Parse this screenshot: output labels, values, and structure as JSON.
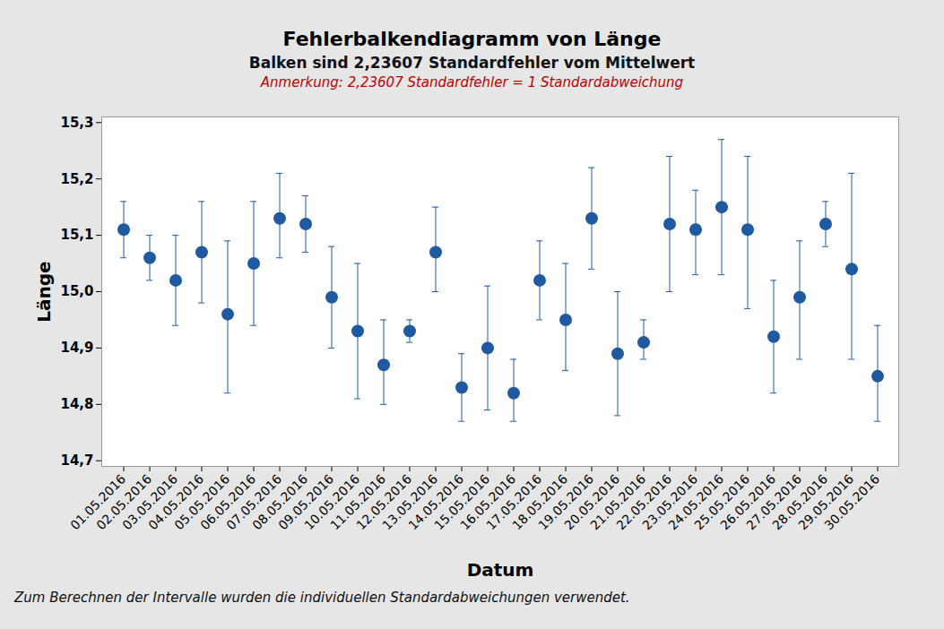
{
  "chart_data": {
    "type": "errorbar",
    "title": "Fehlerbalkendiagramm von Länge",
    "subtitle": "Balken sind 2,23607 Standardfehler vom Mittelwert",
    "annotation": "Anmerkung: 2,23607 Standardfehler = 1 Standardabweichung",
    "footnote": "Zum Berechnen der Intervalle wurden die individuellen Standardabweichungen verwendet.",
    "x_label": "Datum",
    "y_label": "Länge",
    "x": [
      "01.05.2016",
      "02.05.2016",
      "03.05.2016",
      "04.05.2016",
      "05.05.2016",
      "06.05.2016",
      "07.05.2016",
      "08.05.2016",
      "09.05.2016",
      "10.05.2016",
      "11.05.2016",
      "12.05.2016",
      "13.05.2016",
      "14.05.2016",
      "15.05.2016",
      "16.05.2016",
      "17.05.2016",
      "18.05.2016",
      "19.05.2016",
      "20.05.2016",
      "21.05.2016",
      "22.05.2016",
      "23.05.2016",
      "24.05.2016",
      "25.05.2016",
      "26.05.2016",
      "27.05.2016",
      "28.05.2016",
      "29.05.2016",
      "30.05.2016"
    ],
    "values": [
      15.11,
      15.06,
      15.02,
      15.07,
      14.96,
      15.05,
      15.13,
      15.12,
      14.99,
      14.93,
      14.87,
      14.93,
      15.07,
      14.83,
      14.9,
      14.82,
      15.02,
      14.95,
      15.13,
      14.89,
      14.91,
      15.12,
      15.11,
      15.15,
      15.11,
      14.92,
      14.99,
      15.12,
      15.04,
      14.85
    ],
    "error_low": [
      15.06,
      15.02,
      14.94,
      14.98,
      14.82,
      14.94,
      15.06,
      15.07,
      14.9,
      14.81,
      14.8,
      14.91,
      15.0,
      14.77,
      14.79,
      14.77,
      14.95,
      14.86,
      15.04,
      14.78,
      14.88,
      15.0,
      15.03,
      15.03,
      14.97,
      14.82,
      14.88,
      15.08,
      14.88,
      14.77
    ],
    "error_high": [
      15.16,
      15.1,
      15.1,
      15.16,
      15.09,
      15.16,
      15.21,
      15.17,
      15.08,
      15.05,
      14.95,
      14.95,
      15.15,
      14.89,
      15.01,
      14.88,
      15.09,
      15.05,
      15.22,
      15.0,
      14.95,
      15.24,
      15.18,
      15.27,
      15.24,
      15.02,
      15.09,
      15.16,
      15.21,
      14.94
    ],
    "color": "#1f5aa0",
    "marker": "circle",
    "ylim": [
      14.69,
      15.31
    ],
    "yticks": [
      {
        "value": 14.7,
        "label": "14,7"
      },
      {
        "value": 14.8,
        "label": "14,8"
      },
      {
        "value": 14.9,
        "label": "14,9"
      },
      {
        "value": 15.0,
        "label": "15,0"
      },
      {
        "value": 15.1,
        "label": "15,1"
      },
      {
        "value": 15.2,
        "label": "15,2"
      },
      {
        "value": 15.3,
        "label": "15,3"
      }
    ],
    "grid": false
  }
}
